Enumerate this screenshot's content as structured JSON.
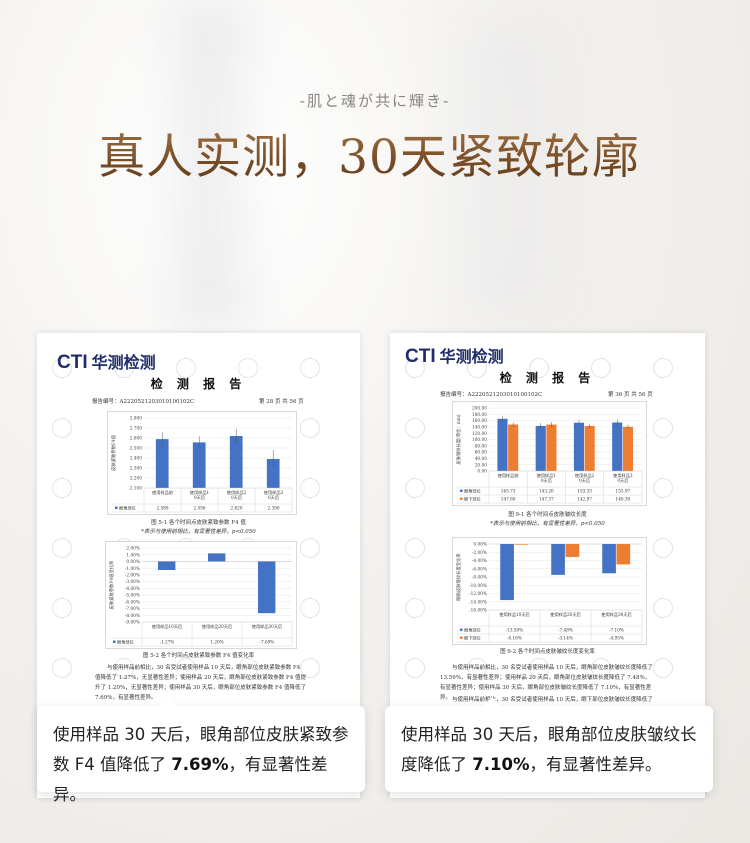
{
  "header": {
    "subtitle": "-肌と魂が共に輝き-",
    "title": "真人实测，30天紧致轮廓",
    "title_mark": "*"
  },
  "colors": {
    "blue": "#4472c4",
    "orange": "#ed7d31",
    "title_brown": "#7a4e26",
    "logo_navy": "#1f2d6b"
  },
  "reports": [
    {
      "logo_mark": "CTI",
      "logo_text": "华测检测",
      "doc_title": "检 测 报 告",
      "report_no": "报告编号：A2220521203010100102C",
      "page": "第 28 页 共 56 页",
      "fig1_caption": "图 5-1  各个时间点皮肤紧致参数 F4 值",
      "fig1_note": "*表示与使用前相比，有显著性差异，p<0.050",
      "fig2_caption": "图 5-2  各个时间点皮肤紧致参数 F4 值变化率",
      "paragraph": "与使用样品前相比，30 名受试者使用样品 10 天后，眼角部位皮肤紧致参数 F4 值降低了 1.27%，无显著性差异；使用样品 20 天后，眼角部位皮肤紧致参数 F4 值提升了 1.20%，无显著性差异；使用样品 30 天后，眼角部位皮肤紧致参数 F4 值降低了 7.69%，有显著性差异。",
      "callout": {
        "pre": "使用样品 30 天后，眼角部位皮肤紧致参数 F4 值降低了 ",
        "bold": "7.69%",
        "post": "，有显著性差异。"
      }
    },
    {
      "logo_mark": "CTI",
      "logo_text": "华测检测",
      "doc_title": "检 测 报 告",
      "report_no": "报告编号：A2220521203010100102C",
      "page": "第 36 页 共 56 页",
      "fig1_caption": "图 9-1  各个时间点皮肤皱纹长度",
      "fig1_note": "*表示与使用前相比，有显著性差异，p<0.050",
      "fig2_caption": "图 9-2  各个时间点皮肤皱纹长度变化率",
      "paragraph": "与使用样品前相比，30 名受试者使用样品 10 天后，眼角部位皮肤皱纹长度降低了 13.59%，有显著性差异；使用样品 20 天后，眼角部位皮肤皱纹长度降低了 7.48%，有显著性差异；使用样品 30 天后，眼角部位皮肤皱纹长度降低了 7.10%，有显著性差异。",
      "paragraph2": "与使用样品前相比，30 名受试者使用样品 10 天后，眼下部位皮肤皱纹长度降低了 0.16%，",
      "callout": {
        "pre": "使用样品 30 天后，眼角部位皮肤皱纹长度降低了 ",
        "bold": "7.10%",
        "post": "，有显著性差异。"
      }
    }
  ],
  "chart_data": [
    {
      "type": "bar",
      "title": "",
      "ylabel": "皮肤紧致参数F4值",
      "ylim": [
        2.1,
        2.8
      ],
      "tick_step": 0.1,
      "decimals": 3,
      "unit": "",
      "grid": true,
      "categories": [
        "使用样品前",
        "使用样品10天后",
        "使用样品20天后",
        "使用样品30天后"
      ],
      "series": [
        {
          "name": "眼角部位",
          "color": "#4472c4",
          "values": [
            2.589,
            2.556,
            2.62,
            2.39
          ],
          "errors": [
            0.07,
            0.06,
            0.07,
            0.09
          ]
        }
      ]
    },
    {
      "type": "bar",
      "title": "",
      "ylabel": "皮肤紧致参数F4值变化率",
      "ylim": [
        -9,
        2
      ],
      "tick_step": 1,
      "decimals": 2,
      "unit": "%",
      "grid": true,
      "categories": [
        "使用样品10天后",
        "使用样品20天后",
        "使用样品30天后"
      ],
      "series": [
        {
          "name": "眼角部位",
          "color": "#4472c4",
          "values": [
            -1.27,
            1.2,
            -7.69
          ]
        }
      ]
    },
    {
      "type": "bar",
      "title": "",
      "ylabel": "皮肤皱纹长度(单位：mm)",
      "ylim": [
        0,
        200
      ],
      "tick_step": 20,
      "decimals": 2,
      "unit": "",
      "grid": true,
      "categories": [
        "使用样品前",
        "使用样品10天后",
        "使用样品20天后",
        "使用样品30天后"
      ],
      "series": [
        {
          "name": "眼角部位",
          "color": "#4472c4",
          "values": [
            165.73,
            143.2,
            153.33,
            153.97
          ],
          "errors": [
            8,
            9,
            8,
            9
          ]
        },
        {
          "name": "眼下部位",
          "color": "#ed7d31",
          "values": [
            147.6,
            147.37,
            142.97,
            140.3
          ],
          "errors": [
            7,
            8,
            7,
            7
          ]
        }
      ]
    },
    {
      "type": "bar",
      "title": "",
      "ylabel": "眼角皮肤皱纹长度变化率",
      "ylim": [
        -16,
        0
      ],
      "tick_step": 2,
      "decimals": 2,
      "unit": "%",
      "grid": true,
      "categories": [
        "使用样品10天后",
        "使用样品20天后",
        "使用样品30天后"
      ],
      "series": [
        {
          "name": "眼角部位",
          "color": "#4472c4",
          "values": [
            -13.59,
            -7.48,
            -7.1
          ]
        },
        {
          "name": "眼下部位",
          "color": "#ed7d31",
          "values": [
            -0.16,
            -3.14,
            -4.95
          ]
        }
      ]
    }
  ]
}
